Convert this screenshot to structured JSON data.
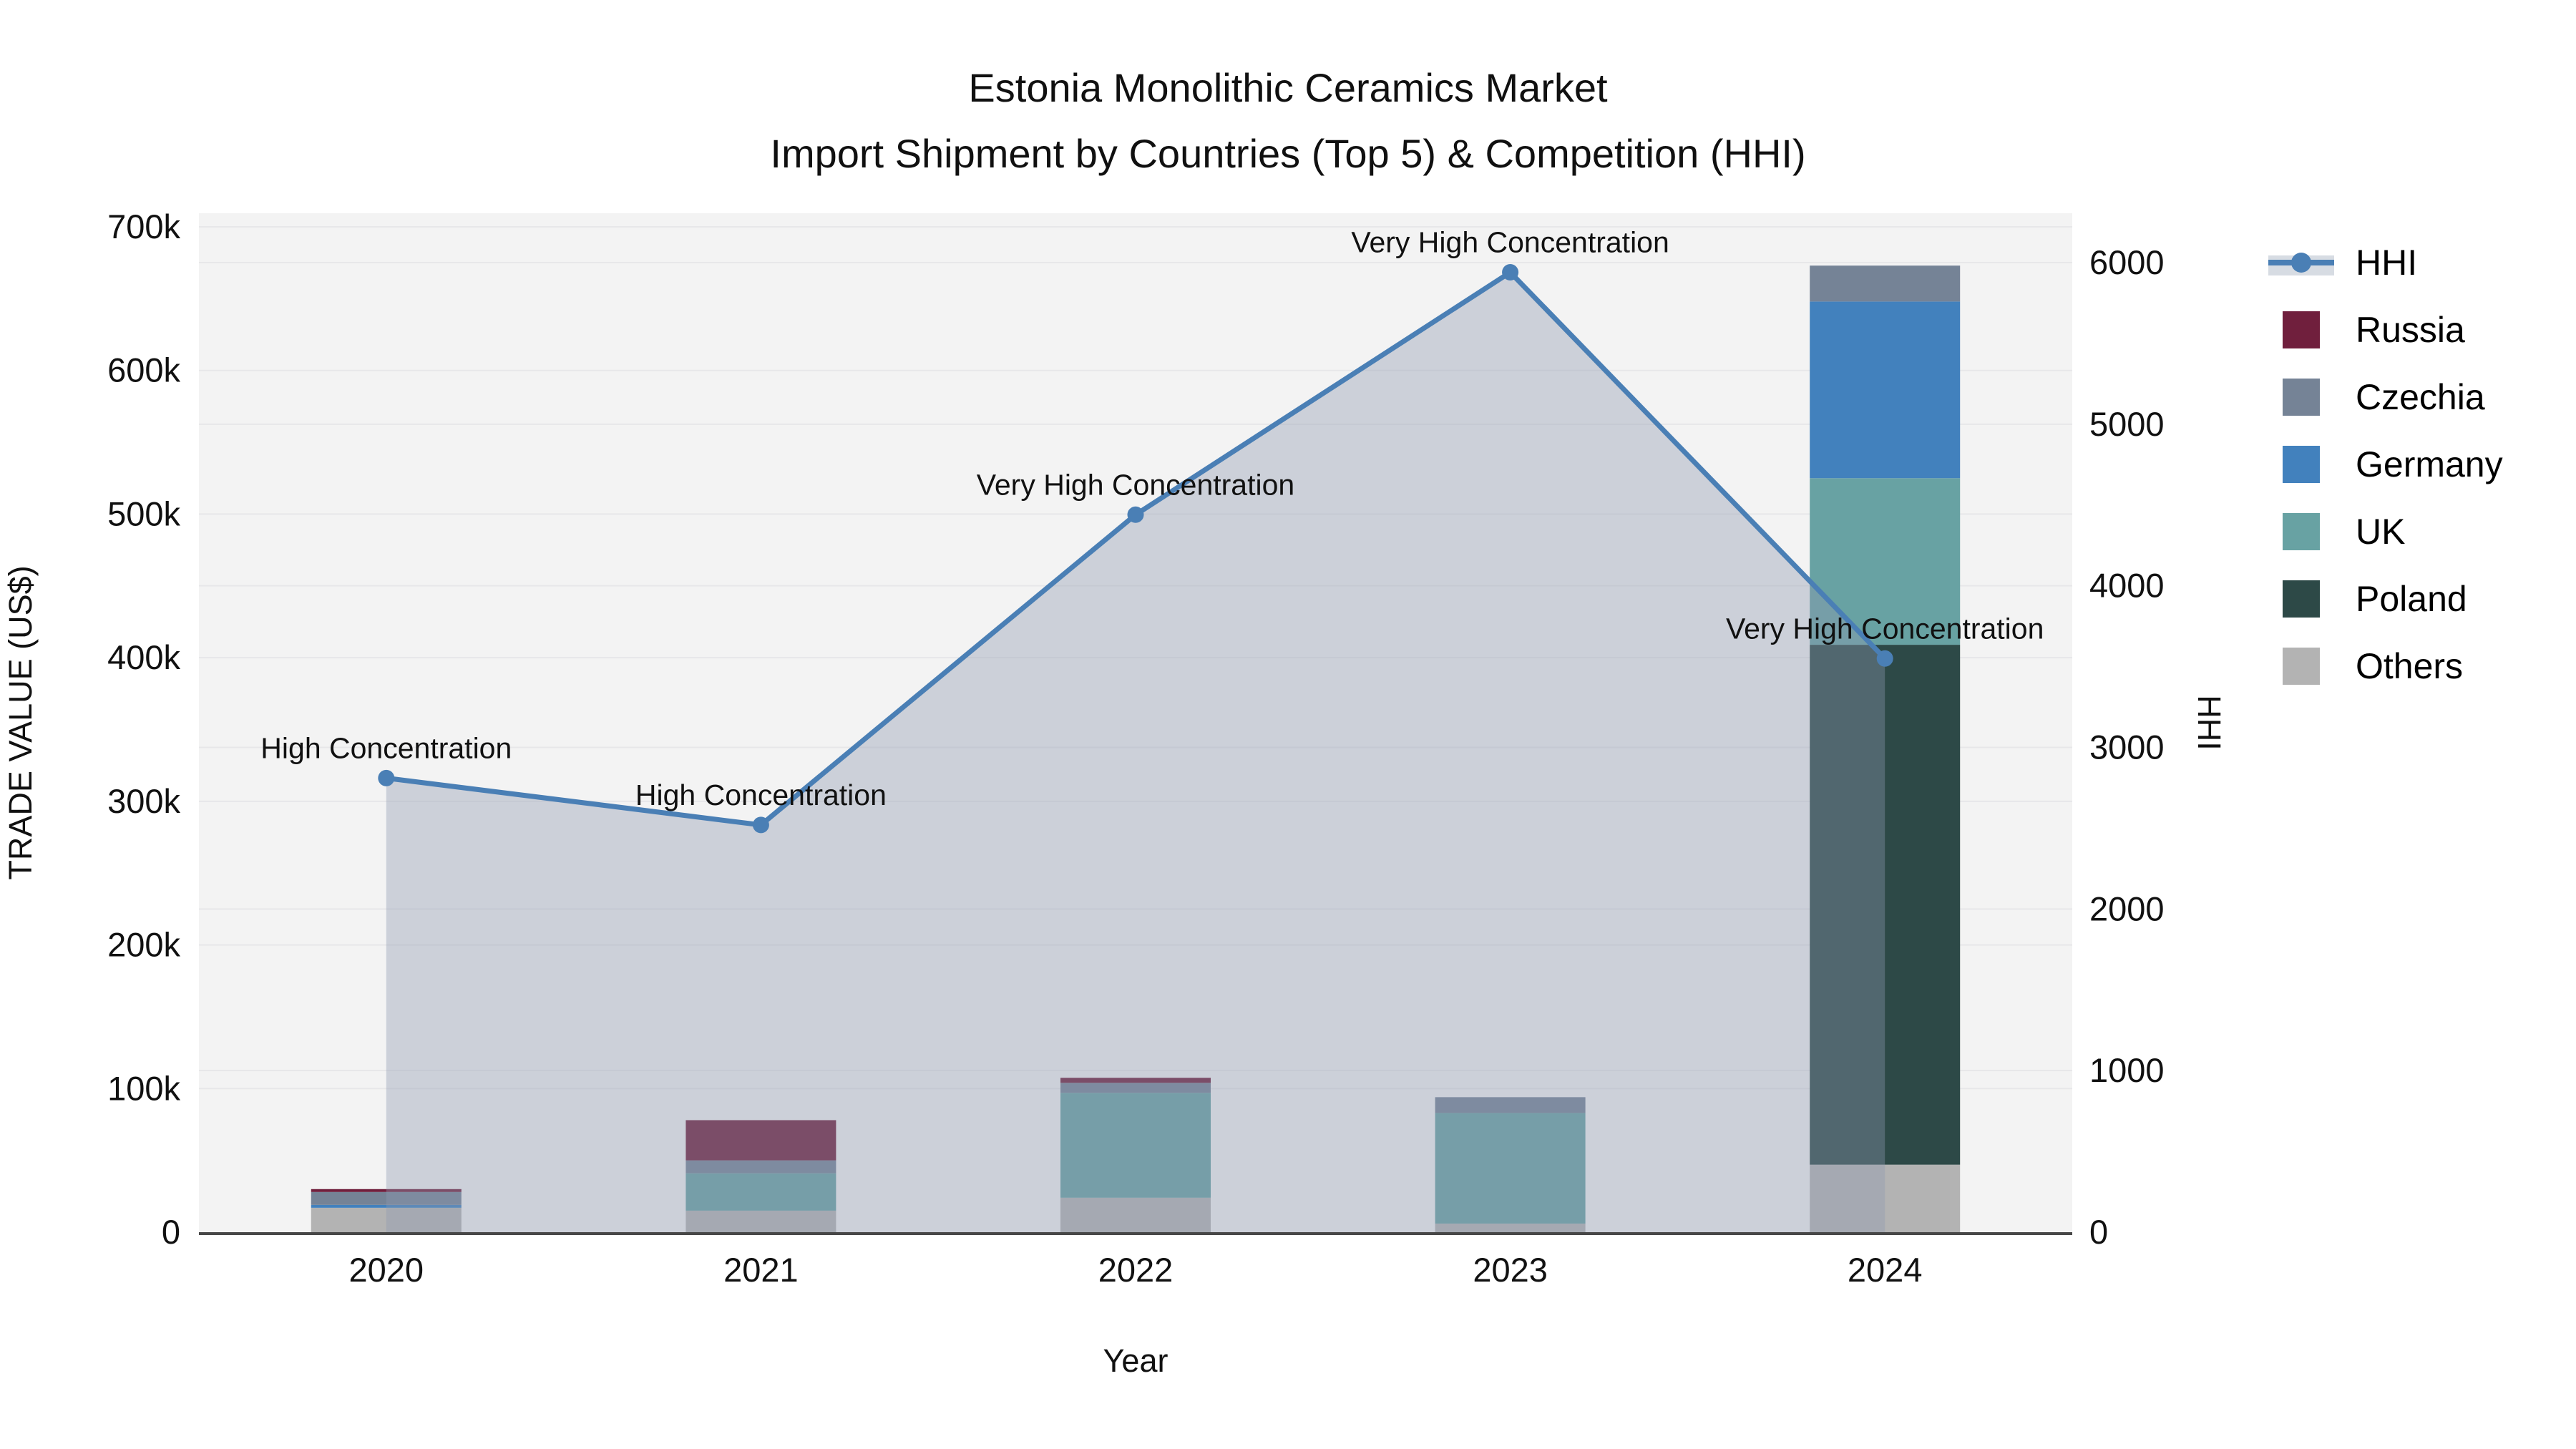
{
  "title": {
    "line1": "Estonia Monolithic Ceramics Market",
    "line2": "Import Shipment by Countries (Top 5) & Competition (HHI)"
  },
  "axes": {
    "x": {
      "label": "Year",
      "ticks": [
        "2020",
        "2021",
        "2022",
        "2023",
        "2024"
      ]
    },
    "y_left": {
      "label": "TRADE VALUE (US$)",
      "ticks": [
        "0",
        "100k",
        "200k",
        "300k",
        "400k",
        "500k",
        "600k",
        "700k"
      ]
    },
    "y_right": {
      "label": "HHI",
      "ticks": [
        "0",
        "1000",
        "2000",
        "3000",
        "4000",
        "5000",
        "6000"
      ]
    }
  },
  "chart_data": {
    "type": "stacked-bar+line (dual axis)",
    "title": "Estonia Monolithic Ceramics Market — Import Shipment by Countries (Top 5) & Competition (HHI)",
    "xlabel": "Year",
    "ylabel": "TRADE VALUE (US$)",
    "ylabel2": "HHI",
    "categories": [
      "2020",
      "2021",
      "2022",
      "2023",
      "2024"
    ],
    "ylim_left": [
      0,
      700000
    ],
    "ylim_right": [
      0,
      6000
    ],
    "grid": true,
    "legend_position": "right",
    "series": [
      {
        "name": "Others",
        "color": "#b3b3b3",
        "values": [
          17000,
          15000,
          24000,
          6000,
          47000
        ]
      },
      {
        "name": "Poland",
        "color": "#2d4947",
        "values": [
          0,
          0,
          0,
          0,
          362000
        ]
      },
      {
        "name": "UK",
        "color": "#68a2a3",
        "values": [
          0,
          26000,
          73000,
          77000,
          116000
        ]
      },
      {
        "name": "Germany",
        "color": "#4281bd",
        "values": [
          2000,
          0,
          0,
          0,
          123000
        ]
      },
      {
        "name": "Czechia",
        "color": "#758396",
        "values": [
          9000,
          9000,
          7000,
          11000,
          25000
        ]
      },
      {
        "name": "Russia",
        "color": "#701f3d",
        "values": [
          2000,
          28000,
          3500,
          0,
          0
        ]
      }
    ],
    "stack_order_note": "series listed bottom-to-top of stack",
    "line": {
      "name": "HHI",
      "color": "#4a7fb5",
      "area_fill": "rgba(141,153,177,0.38)",
      "values": [
        2810,
        2520,
        4440,
        5940,
        3550
      ],
      "annotations": [
        "High Concentration",
        "High Concentration",
        "Very High Concentration",
        "Very High Concentration",
        "Very High Concentration"
      ]
    }
  },
  "legend": {
    "items": [
      {
        "label": "HHI",
        "type": "line",
        "color": "#4a7fb5",
        "band": "#d7dce3"
      },
      {
        "label": "Russia",
        "type": "square",
        "color": "#701f3d"
      },
      {
        "label": "Czechia",
        "type": "square",
        "color": "#758396"
      },
      {
        "label": "Germany",
        "type": "square",
        "color": "#4281bd"
      },
      {
        "label": "UK",
        "type": "square",
        "color": "#68a2a3"
      },
      {
        "label": "Poland",
        "type": "square",
        "color": "#2d4947"
      },
      {
        "label": "Others",
        "type": "square",
        "color": "#b3b3b3"
      }
    ]
  },
  "style": {
    "plot_bg": "#f3f3f3",
    "gridline": "#e7e7e9",
    "axis_line": "#474747"
  }
}
